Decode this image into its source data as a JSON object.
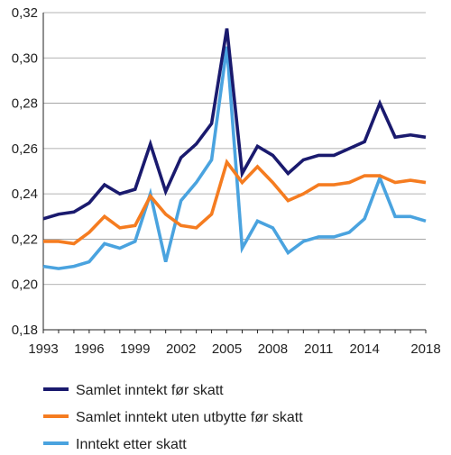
{
  "chart_data": {
    "type": "line",
    "title": "",
    "xlabel": "",
    "ylabel": "",
    "xlim": [
      1993,
      2018
    ],
    "ylim": [
      0.18,
      0.32
    ],
    "x": [
      1993,
      1994,
      1995,
      1996,
      1997,
      1998,
      1999,
      2000,
      2001,
      2002,
      2003,
      2004,
      2005,
      2006,
      2007,
      2008,
      2009,
      2010,
      2011,
      2012,
      2013,
      2014,
      2015,
      2016,
      2017,
      2018
    ],
    "x_ticks": [
      "1993",
      "1996",
      "1999",
      "2002",
      "2005",
      "2008",
      "2011",
      "2014",
      "2018"
    ],
    "x_tick_values": [
      1993,
      1996,
      1999,
      2002,
      2005,
      2008,
      2011,
      2014,
      2018
    ],
    "y_ticks": [
      "0,18",
      "0,20",
      "0,22",
      "0,24",
      "0,26",
      "0,28",
      "0,30",
      "0,32"
    ],
    "y_tick_values": [
      0.18,
      0.2,
      0.22,
      0.24,
      0.26,
      0.28,
      0.3,
      0.32
    ],
    "grid": "horizontal",
    "legend_position": "bottom",
    "series": [
      {
        "name": "Samlet inntekt før skatt",
        "color": "#1a1a6e",
        "values": [
          0.229,
          0.231,
          0.232,
          0.236,
          0.244,
          0.24,
          0.242,
          0.262,
          0.241,
          0.256,
          0.262,
          0.271,
          0.313,
          0.249,
          0.261,
          0.257,
          0.249,
          0.255,
          0.257,
          0.257,
          0.26,
          0.263,
          0.28,
          0.265,
          0.266,
          0.265
        ]
      },
      {
        "name": "Samlet inntekt uten utbytte før skatt",
        "color": "#f57c20",
        "values": [
          0.219,
          0.219,
          0.218,
          0.223,
          0.23,
          0.225,
          0.226,
          0.239,
          0.231,
          0.226,
          0.225,
          0.231,
          0.254,
          0.245,
          0.252,
          0.245,
          0.237,
          0.24,
          0.244,
          0.244,
          0.245,
          0.248,
          0.248,
          0.245,
          0.246,
          0.245
        ]
      },
      {
        "name": "Inntekt etter skatt",
        "color": "#4aa3df",
        "values": [
          0.208,
          0.207,
          0.208,
          0.21,
          0.218,
          0.216,
          0.219,
          0.24,
          0.21,
          0.237,
          0.245,
          0.255,
          0.305,
          0.216,
          0.228,
          0.225,
          0.214,
          0.219,
          0.221,
          0.221,
          0.223,
          0.229,
          0.247,
          0.23,
          0.23,
          0.228
        ]
      }
    ]
  }
}
